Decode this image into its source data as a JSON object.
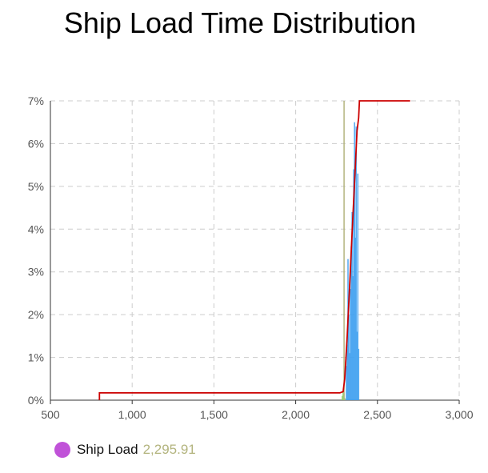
{
  "chart_data": {
    "type": "line",
    "title": "Ship Load Time Distribution",
    "xlim": [
      500,
      3000
    ],
    "ylim": [
      0,
      7
    ],
    "x_ticks": [
      500,
      1000,
      1500,
      2000,
      2500,
      3000
    ],
    "x_tick_labels": [
      "500",
      "1,000",
      "1,500",
      "2,000",
      "2,500",
      "3,000"
    ],
    "y_ticks": [
      0,
      1,
      2,
      3,
      4,
      5,
      6,
      7
    ],
    "y_tick_labels": [
      "0%",
      "1%",
      "2%",
      "3%",
      "4%",
      "5%",
      "6%",
      "7%"
    ],
    "grid": true,
    "legend_position": "bottom-left",
    "series": [
      {
        "type": "line",
        "color": "#cc0000",
        "points": [
          [
            800,
            0
          ],
          [
            800,
            0.17
          ],
          [
            2270,
            0.17
          ],
          [
            2290,
            0.2
          ],
          [
            2300,
            0.5
          ],
          [
            2315,
            1.5
          ],
          [
            2330,
            2.7
          ],
          [
            2345,
            3.9
          ],
          [
            2360,
            5.1
          ],
          [
            2375,
            6.3
          ],
          [
            2385,
            6.6
          ],
          [
            2390,
            7.0
          ],
          [
            2700,
            7.0
          ]
        ]
      },
      {
        "type": "vertical-line",
        "color": "#b3b47e",
        "x": 2295.91
      },
      {
        "type": "histogram",
        "color": "#3fa0f0",
        "bars": [
          [
            2310,
            0.8
          ],
          [
            2315,
            1.3
          ],
          [
            2320,
            3.3
          ],
          [
            2325,
            2.0
          ],
          [
            2330,
            1.1
          ],
          [
            2335,
            2.6
          ],
          [
            2340,
            3.6
          ],
          [
            2345,
            4.4
          ],
          [
            2350,
            2.9
          ],
          [
            2355,
            5.4
          ],
          [
            2360,
            6.5
          ],
          [
            2365,
            3.8
          ],
          [
            2370,
            6.4
          ],
          [
            2375,
            1.6
          ],
          [
            2380,
            5.3
          ],
          [
            2385,
            1.2
          ]
        ]
      },
      {
        "type": "histogram",
        "color": "#8ad06a",
        "bars": [
          [
            2285,
            0.1
          ],
          [
            2290,
            0.2
          ],
          [
            2295,
            0.15
          ],
          [
            2300,
            0.05
          ]
        ]
      }
    ],
    "legend": [
      {
        "name": "Ship Load",
        "color": "#c052d8",
        "value": "2,295.91"
      }
    ]
  }
}
